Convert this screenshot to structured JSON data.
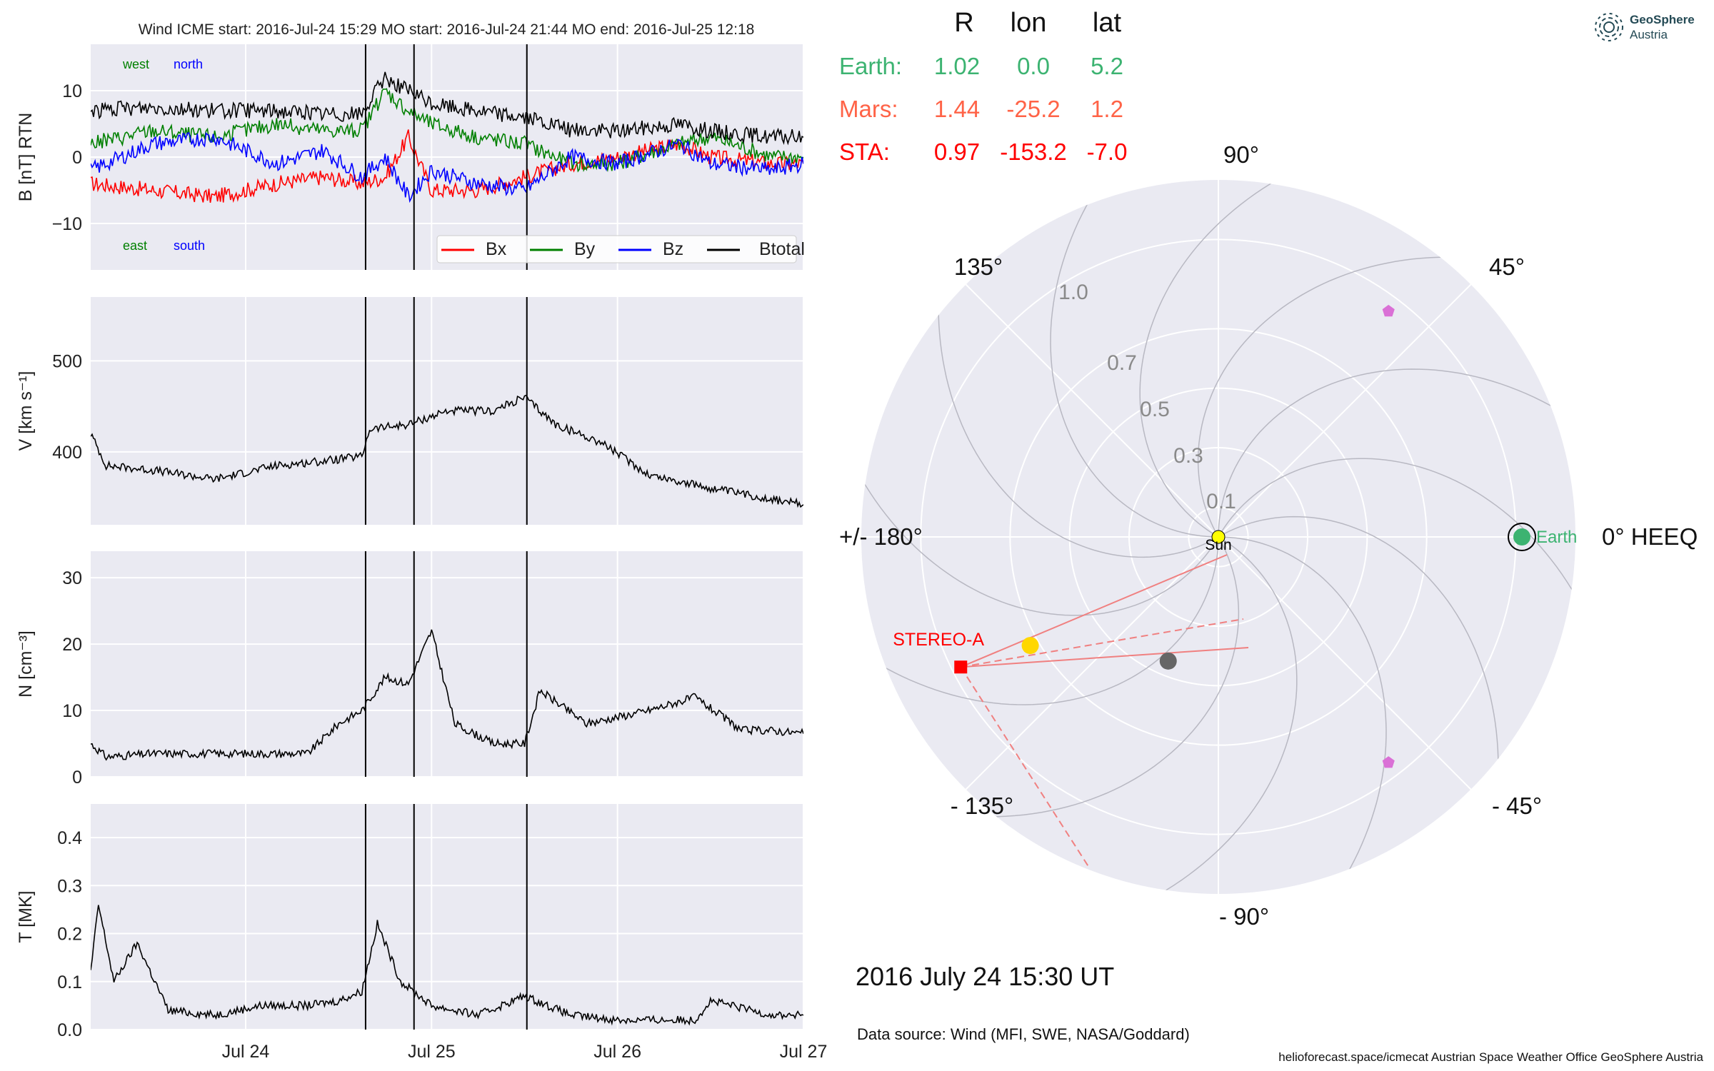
{
  "figure": {
    "timestamp": "2016 July 24  15:30 UT",
    "data_source": "Data source: Wind (MFI, SWE, NASA/Goddard)",
    "footer": "helioforecast.space/icmecat   Austrian Space Weather Office   GeoSphere Austria",
    "logo": {
      "line1": "GeoSphere",
      "line2": "Austria",
      "icon": "geosphere-logo-icon"
    }
  },
  "insitu_title": "Wind    ICME start: 2016-Jul-24 15:29   MO start: 2016-Jul-24 21:44   MO end: 2016-Jul-25 12:18",
  "positions": {
    "headers": [
      "R",
      "lon",
      "lat"
    ],
    "rows": [
      {
        "name": "Earth:",
        "R": "1.02",
        "lon": "0.0",
        "lat": "5.2",
        "color": "#3cb371"
      },
      {
        "name": "Mars:",
        "R": "1.44",
        "lon": "-25.2",
        "lat": "1.2",
        "color": "#ff6347"
      },
      {
        "name": "STA:",
        "R": "0.97",
        "lon": "-153.2",
        "lat": "-7.0",
        "color": "#ff0000"
      }
    ]
  },
  "colors": {
    "bx": "#ff0000",
    "by": "#008000",
    "bz": "#0000ff",
    "btot": "#000000",
    "panel_bg": "#eaeaf2",
    "grid": "#ffffff"
  },
  "chart_data": [
    {
      "type": "line",
      "title": "Wind    ICME start: 2016-Jul-24 15:29   MO start: 2016-Jul-24 21:44   MO end: 2016-Jul-25 12:18",
      "ylabel": "B [nT] RTN",
      "ylim": [
        -17,
        17
      ],
      "yticks": [
        {
          "v": 10,
          "t": "10"
        },
        {
          "v": 0,
          "t": "0"
        },
        {
          "v": -10,
          "t": "−10"
        }
      ],
      "annotations": [
        {
          "text": "west",
          "color": "#008000",
          "pos": "top-left"
        },
        {
          "text": "north",
          "color": "#0000ff",
          "pos": "top-left"
        },
        {
          "text": "east",
          "color": "#008000",
          "pos": "bottom-left"
        },
        {
          "text": "south",
          "color": "#0000ff",
          "pos": "bottom-left"
        }
      ],
      "legend": {
        "placement": "lower-right",
        "entries": [
          "Bx",
          "By",
          "Bz",
          "Btotal"
        ]
      },
      "series": [
        {
          "name": "Bx",
          "color": "#ff0000",
          "x": [
            "2016-07-23 04:00",
            "2016-07-23 12:00",
            "2016-07-23 20:00",
            "2016-07-24 04:00",
            "2016-07-24 10:00",
            "2016-07-24 15:00",
            "2016-07-24 18:00",
            "2016-07-24 21:00",
            "2016-07-25 00:00",
            "2016-07-25 06:00",
            "2016-07-25 12:00",
            "2016-07-25 18:00",
            "2016-07-26 00:00",
            "2016-07-26 08:00",
            "2016-07-26 12:00",
            "2016-07-26 20:00",
            "2016-07-27 00:00"
          ],
          "y": [
            -4,
            -5,
            -6,
            -4,
            -3,
            -4,
            -3,
            3,
            -5,
            -5,
            -3,
            -1,
            0,
            2,
            0,
            -1,
            -1
          ]
        },
        {
          "name": "By",
          "color": "#008000",
          "x": [
            "2016-07-23 04:00",
            "2016-07-23 12:00",
            "2016-07-23 20:00",
            "2016-07-24 04:00",
            "2016-07-24 10:00",
            "2016-07-24 15:00",
            "2016-07-24 18:00",
            "2016-07-24 21:00",
            "2016-07-25 00:00",
            "2016-07-25 06:00",
            "2016-07-25 12:00",
            "2016-07-25 18:00",
            "2016-07-26 00:00",
            "2016-07-26 08:00",
            "2016-07-26 12:00",
            "2016-07-26 20:00",
            "2016-07-27 00:00"
          ],
          "y": [
            2,
            4,
            3,
            5,
            4,
            4,
            10,
            7,
            5,
            3,
            2,
            -1,
            -1,
            2,
            3,
            0,
            0
          ]
        },
        {
          "name": "Bz",
          "color": "#0000ff",
          "x": [
            "2016-07-23 04:00",
            "2016-07-23 12:00",
            "2016-07-23 20:00",
            "2016-07-24 04:00",
            "2016-07-24 10:00",
            "2016-07-24 15:00",
            "2016-07-24 18:00",
            "2016-07-24 21:00",
            "2016-07-25 00:00",
            "2016-07-25 06:00",
            "2016-07-25 12:00",
            "2016-07-25 18:00",
            "2016-07-26 00:00",
            "2016-07-26 08:00",
            "2016-07-26 12:00",
            "2016-07-26 20:00",
            "2016-07-27 00:00"
          ],
          "y": [
            -2,
            2,
            3,
            -1,
            1,
            -3,
            0,
            -6,
            -2,
            -4,
            -5,
            0,
            -1,
            2,
            -1,
            -2,
            -1
          ]
        },
        {
          "name": "Btotal",
          "color": "#000000",
          "x": [
            "2016-07-23 04:00",
            "2016-07-23 12:00",
            "2016-07-23 20:00",
            "2016-07-24 04:00",
            "2016-07-24 10:00",
            "2016-07-24 15:00",
            "2016-07-24 18:00",
            "2016-07-24 21:00",
            "2016-07-25 00:00",
            "2016-07-25 06:00",
            "2016-07-25 12:00",
            "2016-07-25 18:00",
            "2016-07-26 00:00",
            "2016-07-26 08:00",
            "2016-07-26 12:00",
            "2016-07-26 20:00",
            "2016-07-27 00:00"
          ],
          "y": [
            7,
            7.5,
            7,
            7,
            6.5,
            6.5,
            12,
            10,
            8,
            7,
            6,
            4,
            4,
            5,
            4,
            3,
            3
          ]
        }
      ]
    },
    {
      "type": "line",
      "ylabel": "V [km s⁻¹]",
      "ylim": [
        320,
        570
      ],
      "yticks": [
        {
          "v": 500,
          "t": "500"
        },
        {
          "v": 400,
          "t": "400"
        }
      ],
      "series": [
        {
          "name": "V",
          "color": "#000000",
          "x": [
            "2016-07-23 04:00",
            "2016-07-23 06:00",
            "2016-07-23 12:00",
            "2016-07-23 20:00",
            "2016-07-24 04:00",
            "2016-07-24 10:00",
            "2016-07-24 15:00",
            "2016-07-24 16:00",
            "2016-07-24 21:00",
            "2016-07-25 02:00",
            "2016-07-25 08:00",
            "2016-07-25 12:00",
            "2016-07-25 16:00",
            "2016-07-25 22:00",
            "2016-07-26 04:00",
            "2016-07-26 12:00",
            "2016-07-26 20:00",
            "2016-07-27 00:00"
          ],
          "y": [
            420,
            385,
            380,
            370,
            385,
            390,
            395,
            425,
            430,
            445,
            445,
            460,
            430,
            410,
            375,
            360,
            348,
            342
          ]
        }
      ]
    },
    {
      "type": "line",
      "ylabel": "N [cm⁻³]",
      "ylim": [
        0,
        34
      ],
      "yticks": [
        {
          "v": 30,
          "t": "30"
        },
        {
          "v": 20,
          "t": "20"
        },
        {
          "v": 10,
          "t": "10"
        },
        {
          "v": 0,
          "t": "0"
        }
      ],
      "series": [
        {
          "name": "N",
          "color": "#000000",
          "x": [
            "2016-07-23 04:00",
            "2016-07-23 06:00",
            "2016-07-23 12:00",
            "2016-07-23 20:00",
            "2016-07-24 04:00",
            "2016-07-24 08:00",
            "2016-07-24 12:00",
            "2016-07-24 15:00",
            "2016-07-24 18:00",
            "2016-07-24 21:00",
            "2016-07-25 00:00",
            "2016-07-25 03:00",
            "2016-07-25 08:00",
            "2016-07-25 12:00",
            "2016-07-25 14:00",
            "2016-07-25 20:00",
            "2016-07-26 04:00",
            "2016-07-26 10:00",
            "2016-07-26 16:00",
            "2016-07-26 20:00",
            "2016-07-27 00:00"
          ],
          "y": [
            5,
            3,
            3.5,
            3.5,
            3.5,
            3.5,
            8,
            10,
            15,
            14,
            22,
            8,
            5,
            5,
            13,
            8,
            10,
            12,
            7,
            7,
            6.5
          ]
        }
      ]
    },
    {
      "type": "line",
      "ylabel": "T [MK]",
      "ylim": [
        0,
        0.47
      ],
      "yticks": [
        {
          "v": 0.4,
          "t": "0.4"
        },
        {
          "v": 0.3,
          "t": "0.3"
        },
        {
          "v": 0.2,
          "t": "0.2"
        },
        {
          "v": 0.1,
          "t": "0.1"
        },
        {
          "v": 0.0,
          "t": "0.0"
        }
      ],
      "xticks": [
        "Jul 24",
        "Jul 25",
        "Jul 26",
        "Jul 27"
      ],
      "series": [
        {
          "name": "T",
          "color": "#000000",
          "x": [
            "2016-07-23 04:00",
            "2016-07-23 05:00",
            "2016-07-23 07:00",
            "2016-07-23 10:00",
            "2016-07-23 14:00",
            "2016-07-23 20:00",
            "2016-07-24 02:00",
            "2016-07-24 08:00",
            "2016-07-24 12:00",
            "2016-07-24 15:00",
            "2016-07-24 17:00",
            "2016-07-24 20:00",
            "2016-07-25 00:00",
            "2016-07-25 06:00",
            "2016-07-25 12:00",
            "2016-07-25 18:00",
            "2016-07-26 00:00",
            "2016-07-26 10:00",
            "2016-07-26 12:00",
            "2016-07-26 20:00",
            "2016-07-27 00:00"
          ],
          "y": [
            0.12,
            0.26,
            0.1,
            0.18,
            0.04,
            0.03,
            0.05,
            0.05,
            0.06,
            0.08,
            0.22,
            0.1,
            0.05,
            0.03,
            0.07,
            0.03,
            0.02,
            0.02,
            0.06,
            0.03,
            0.03
          ]
        }
      ]
    },
    {
      "type": "scatter",
      "subtype": "polar",
      "title": "",
      "theta_labels": [
        "0° HEEQ",
        "45°",
        "90°",
        "135°",
        "+/- 180°",
        "- 135°",
        "- 90°",
        "- 45°"
      ],
      "r_labels": [
        "0.1",
        "0.3",
        "0.5",
        "0.7",
        "1.0"
      ],
      "r_ticks": [
        0.1,
        0.3,
        0.5,
        0.7,
        1.0
      ],
      "rlim": [
        0,
        1.2
      ],
      "bodies": [
        {
          "name": "Sun",
          "r": 0,
          "lon": 0,
          "color": "#ffff00"
        },
        {
          "name": "Earth",
          "r": 1.02,
          "lon": 0.0,
          "color": "#3cb371"
        },
        {
          "name": "STEREO-A",
          "r": 0.97,
          "lon": -153.2,
          "color": "#ff0000"
        },
        {
          "name": "",
          "r": 0.73,
          "lon": -150,
          "color": "#ffd700"
        },
        {
          "name": "",
          "r": 0.45,
          "lon": -112,
          "color": "#666666"
        },
        {
          "name": "",
          "r": 0.95,
          "lon": 53,
          "color": "#da70d6"
        },
        {
          "name": "",
          "r": 0.95,
          "lon": -53,
          "color": "#da70d6"
        }
      ]
    }
  ]
}
